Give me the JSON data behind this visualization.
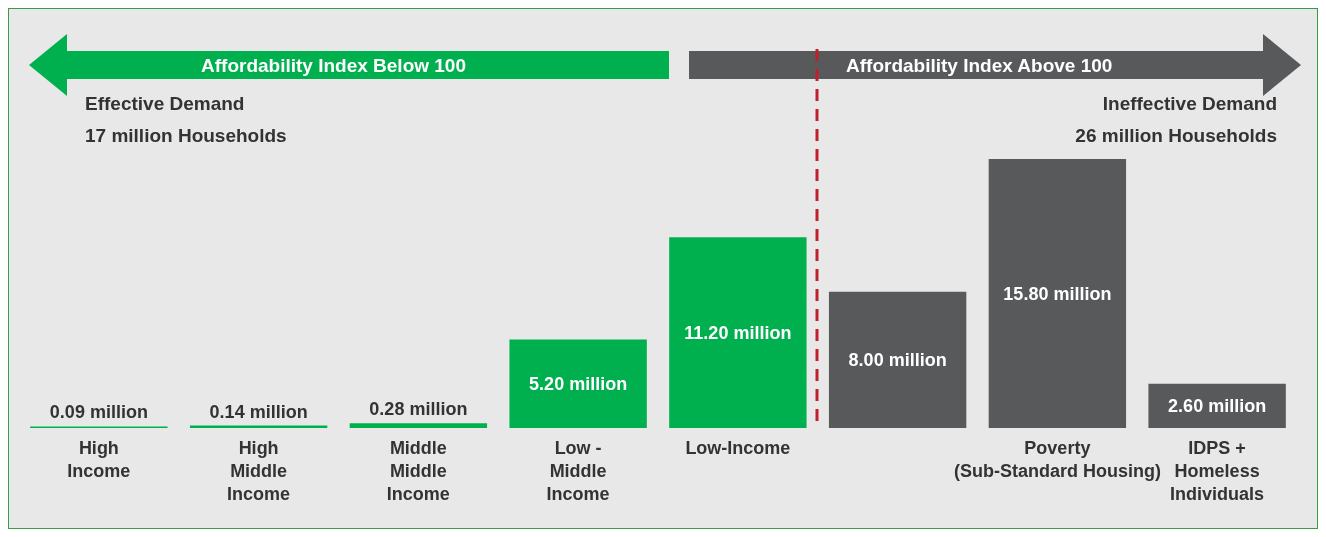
{
  "chart_data": {
    "type": "bar",
    "categories": [
      "High\nIncome",
      "High\nMiddle\nIncome",
      "Middle\nMiddle\nIncome",
      "Low -\nMiddle\nIncome",
      "Low-Income",
      null,
      "Poverty\n(Sub-Standard Housing)",
      "IDPS +\nHomeless\nIndividuals"
    ],
    "values": [
      0.09,
      0.14,
      0.28,
      5.2,
      11.2,
      8.0,
      15.8,
      2.6
    ],
    "value_labels": [
      "0.09 million",
      "0.14 million",
      "0.28 million",
      "5.20 million",
      "11.20 million",
      "8.00 million",
      "15.80 million",
      "2.60 million"
    ],
    "colors": [
      "#00b04f",
      "#00b04f",
      "#00b04f",
      "#00b04f",
      "#00b04f",
      "#58595b",
      "#58595b",
      "#58595b"
    ],
    "annotations": [
      "Affordability Index Below 100",
      "Effective Demand",
      "17 million Households",
      "Affordability Index Above 100",
      "Ineffective Demand",
      "26 million Households"
    ],
    "grid": false
  }
}
